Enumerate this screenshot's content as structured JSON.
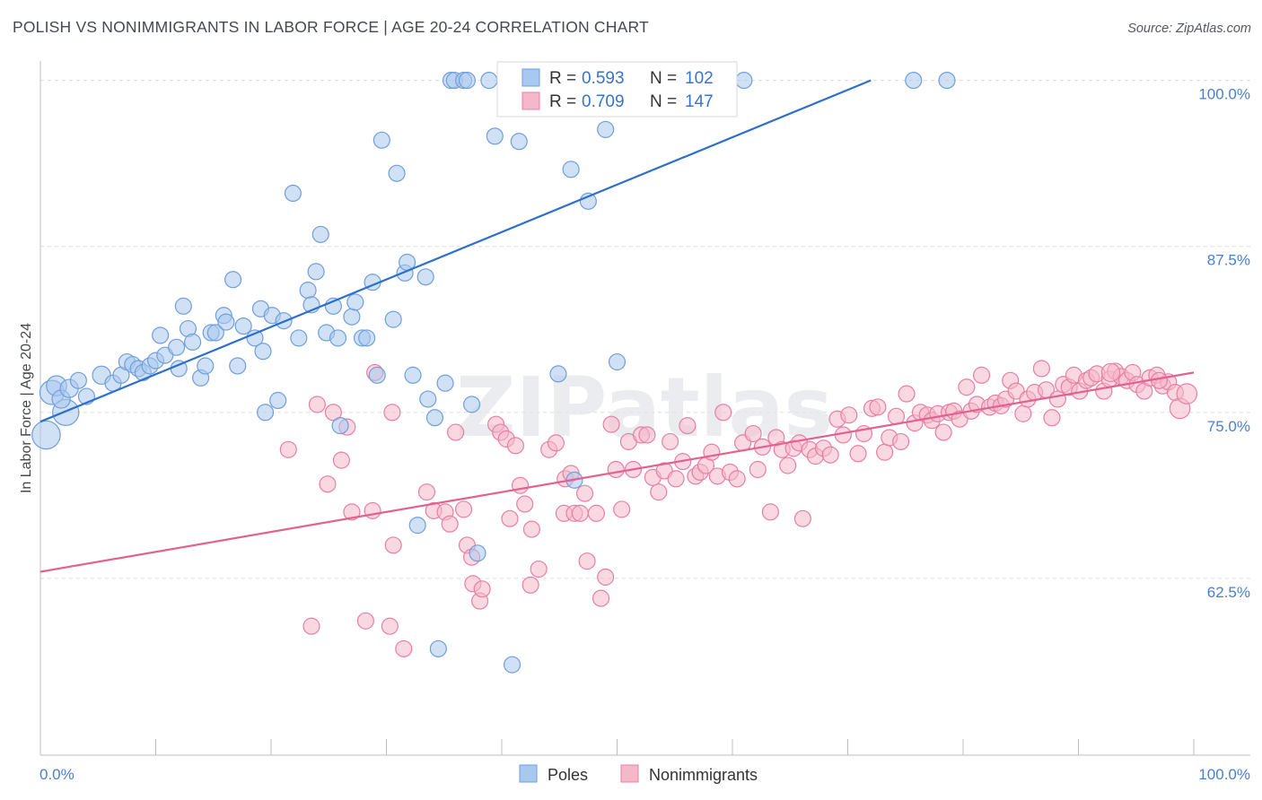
{
  "title": "POLISH VS NONIMMIGRANTS IN LABOR FORCE | AGE 20-24 CORRELATION CHART",
  "source": "Source: ZipAtlas.com",
  "watermark": "ZIPatlas",
  "colors": {
    "poles_fill": "#a9c8ef",
    "poles_stroke": "#6f9fdc",
    "poles_line": "#2e6fcb",
    "nonimm_fill": "#f5b8cb",
    "nonimm_stroke": "#e87fa3",
    "nonimm_line": "#e2628f",
    "tick_label": "#4a7fcf",
    "grid": "#dcdcdc"
  },
  "legend": {
    "rows": [
      {
        "r_label": "R =",
        "r_value": "0.593",
        "n_label": "N =",
        "n_value": "102"
      },
      {
        "r_label": "R =",
        "r_value": "0.709",
        "n_label": "N =",
        "n_value": "147"
      }
    ]
  },
  "chart_data": {
    "type": "scatter",
    "ylabel": "In Labor Force | Age 20-24",
    "xlim": [
      0,
      100
    ],
    "ylim": [
      50,
      102
    ],
    "x_tick_labels": [
      "0.0%",
      "100.0%"
    ],
    "y_ticks": [
      100,
      87.5,
      75,
      62.5
    ],
    "y_tick_labels": [
      "100.0%",
      "87.5%",
      "75.0%",
      "62.5%"
    ],
    "grid": true,
    "legend_position": "top-center",
    "series": [
      {
        "name": "Poles",
        "trend": {
          "x": [
            0,
            72
          ],
          "y": [
            74.3,
            100
          ]
        },
        "points": [
          [
            0.5,
            73.3,
            14
          ],
          [
            1.0,
            76.5,
            12
          ],
          [
            1.4,
            77.0,
            10
          ],
          [
            2.2,
            75.0,
            13
          ],
          [
            1.8,
            76.0,
            9
          ],
          [
            2.5,
            76.8,
            9
          ],
          [
            3.3,
            77.4,
            8
          ],
          [
            4.0,
            76.2,
            8
          ],
          [
            5.3,
            77.8,
            9
          ],
          [
            6.3,
            77.2,
            8
          ],
          [
            7.0,
            77.8,
            8
          ],
          [
            7.5,
            78.8,
            8
          ],
          [
            8.0,
            78.6,
            8
          ],
          [
            8.5,
            78.3,
            8
          ],
          [
            8.9,
            78.0,
            8
          ],
          [
            9.5,
            78.5,
            8
          ],
          [
            10.0,
            78.9,
            8
          ],
          [
            10.4,
            80.8,
            8
          ],
          [
            10.8,
            79.3,
            8
          ],
          [
            11.8,
            79.9,
            8
          ],
          [
            12.0,
            78.3,
            8
          ],
          [
            12.4,
            83.0,
            8
          ],
          [
            12.8,
            81.3,
            8
          ],
          [
            13.2,
            80.3,
            8
          ],
          [
            13.9,
            77.6,
            8
          ],
          [
            14.3,
            78.5,
            8
          ],
          [
            14.8,
            81.0,
            8
          ],
          [
            15.2,
            81.0,
            8
          ],
          [
            15.9,
            82.3,
            8
          ],
          [
            16.1,
            81.8,
            8
          ],
          [
            16.7,
            85.0,
            8
          ],
          [
            17.1,
            78.5,
            8
          ],
          [
            17.6,
            81.5,
            8
          ],
          [
            18.6,
            80.6,
            8
          ],
          [
            19.1,
            82.8,
            8
          ],
          [
            19.3,
            79.6,
            8
          ],
          [
            19.5,
            75.0,
            8
          ],
          [
            20.1,
            82.3,
            8
          ],
          [
            20.6,
            75.9,
            8
          ],
          [
            21.1,
            81.9,
            8
          ],
          [
            21.9,
            91.5,
            8
          ],
          [
            22.4,
            80.6,
            8
          ],
          [
            23.2,
            84.2,
            8
          ],
          [
            23.5,
            83.1,
            8
          ],
          [
            23.9,
            85.6,
            8
          ],
          [
            24.3,
            88.4,
            8
          ],
          [
            24.8,
            81.0,
            8
          ],
          [
            25.4,
            83.0,
            8
          ],
          [
            25.8,
            80.6,
            8
          ],
          [
            26.0,
            74.0,
            8
          ],
          [
            27.0,
            82.2,
            8
          ],
          [
            27.3,
            83.3,
            8
          ],
          [
            27.9,
            80.6,
            8
          ],
          [
            28.3,
            80.6,
            8
          ],
          [
            28.8,
            84.8,
            8
          ],
          [
            29.2,
            77.8,
            8
          ],
          [
            29.6,
            95.5,
            8
          ],
          [
            30.6,
            82.0,
            8
          ],
          [
            30.9,
            93.0,
            8
          ],
          [
            31.6,
            85.5,
            8
          ],
          [
            31.8,
            86.3,
            8
          ],
          [
            32.3,
            77.8,
            8
          ],
          [
            32.7,
            66.5,
            8
          ],
          [
            33.4,
            85.2,
            8
          ],
          [
            33.6,
            76.0,
            8
          ],
          [
            34.2,
            74.6,
            8
          ],
          [
            34.5,
            57.2,
            8
          ],
          [
            35.1,
            77.2,
            8
          ],
          [
            35.6,
            100.0,
            8
          ],
          [
            35.9,
            100.0,
            8
          ],
          [
            36.7,
            100.0,
            8
          ],
          [
            37.0,
            100.0,
            8
          ],
          [
            37.4,
            75.6,
            8
          ],
          [
            37.9,
            64.4,
            8
          ],
          [
            38.9,
            100.0,
            8
          ],
          [
            39.4,
            95.8,
            8
          ],
          [
            40.9,
            56.0,
            8
          ],
          [
            41.4,
            100.0,
            8
          ],
          [
            41.5,
            95.4,
            8
          ],
          [
            41.9,
            100.0,
            8
          ],
          [
            44.4,
            100.0,
            8
          ],
          [
            44.9,
            77.9,
            8
          ],
          [
            46.0,
            93.3,
            8
          ],
          [
            46.3,
            69.9,
            8
          ],
          [
            47.5,
            90.9,
            8
          ],
          [
            49.0,
            96.3,
            8
          ],
          [
            50.0,
            78.8,
            8
          ],
          [
            51.3,
            100.0,
            8
          ],
          [
            51.9,
            100.0,
            8
          ],
          [
            53.6,
            100.0,
            8
          ],
          [
            61.0,
            100.0,
            8
          ],
          [
            75.7,
            100.0,
            8
          ],
          [
            78.6,
            100.0,
            8
          ]
        ]
      },
      {
        "name": "Nonimmigrants",
        "trend": {
          "x": [
            0,
            100
          ],
          "y": [
            63.0,
            78.0
          ]
        },
        "points": [
          [
            21.5,
            72.2,
            8
          ],
          [
            23.5,
            58.9,
            8
          ],
          [
            24.0,
            75.6,
            8
          ],
          [
            24.9,
            69.6,
            8
          ],
          [
            25.4,
            75.0,
            8
          ],
          [
            26.1,
            71.4,
            8
          ],
          [
            26.6,
            73.9,
            8
          ],
          [
            27.0,
            67.5,
            8
          ],
          [
            28.2,
            59.3,
            8
          ],
          [
            28.8,
            67.6,
            8
          ],
          [
            29.0,
            78.0,
            8
          ],
          [
            30.3,
            58.9,
            8
          ],
          [
            30.5,
            75.0,
            8
          ],
          [
            30.6,
            65.0,
            8
          ],
          [
            31.5,
            57.2,
            8
          ],
          [
            33.5,
            69.0,
            8
          ],
          [
            34.1,
            67.6,
            8
          ],
          [
            35.1,
            67.5,
            8
          ],
          [
            35.5,
            66.6,
            8
          ],
          [
            36.0,
            73.5,
            8
          ],
          [
            36.7,
            67.7,
            8
          ],
          [
            37.0,
            65.0,
            8
          ],
          [
            37.4,
            64.1,
            8
          ],
          [
            37.5,
            62.1,
            8
          ],
          [
            38.1,
            60.8,
            8
          ],
          [
            38.3,
            61.7,
            8
          ],
          [
            39.5,
            74.1,
            8
          ],
          [
            39.9,
            73.5,
            8
          ],
          [
            40.4,
            73.0,
            8
          ],
          [
            40.7,
            67.0,
            8
          ],
          [
            41.2,
            72.5,
            8
          ],
          [
            41.6,
            69.5,
            8
          ],
          [
            42.0,
            68.1,
            8
          ],
          [
            42.5,
            62.0,
            8
          ],
          [
            42.6,
            66.2,
            8
          ],
          [
            43.2,
            63.2,
            8
          ],
          [
            44.1,
            72.2,
            8
          ],
          [
            44.7,
            72.7,
            8
          ],
          [
            45.4,
            67.4,
            8
          ],
          [
            45.5,
            70.0,
            8
          ],
          [
            46.0,
            70.4,
            8
          ],
          [
            46.3,
            67.4,
            8
          ],
          [
            46.8,
            67.4,
            8
          ],
          [
            47.2,
            68.9,
            8
          ],
          [
            47.4,
            63.8,
            8
          ],
          [
            48.2,
            67.4,
            8
          ],
          [
            48.6,
            61.0,
            8
          ],
          [
            49.0,
            62.6,
            8
          ],
          [
            49.5,
            74.1,
            8
          ],
          [
            49.9,
            70.7,
            8
          ],
          [
            50.4,
            67.7,
            8
          ],
          [
            51.0,
            72.8,
            8
          ],
          [
            51.4,
            70.7,
            8
          ],
          [
            52.1,
            73.3,
            8
          ],
          [
            52.6,
            73.3,
            8
          ],
          [
            53.1,
            70.1,
            8
          ],
          [
            53.6,
            69.0,
            8
          ],
          [
            54.1,
            70.6,
            8
          ],
          [
            54.6,
            72.8,
            8
          ],
          [
            55.1,
            70.0,
            8
          ],
          [
            55.7,
            71.3,
            8
          ],
          [
            56.1,
            74.0,
            8
          ],
          [
            56.8,
            70.2,
            8
          ],
          [
            57.2,
            70.5,
            8
          ],
          [
            57.7,
            71.0,
            8
          ],
          [
            58.2,
            72.0,
            8
          ],
          [
            58.7,
            70.2,
            8
          ],
          [
            59.2,
            75.0,
            8
          ],
          [
            59.8,
            70.5,
            8
          ],
          [
            60.4,
            70.0,
            8
          ],
          [
            60.9,
            72.7,
            8
          ],
          [
            61.8,
            73.4,
            8
          ],
          [
            62.2,
            70.7,
            8
          ],
          [
            62.6,
            72.4,
            8
          ],
          [
            63.3,
            67.5,
            8
          ],
          [
            63.8,
            73.1,
            8
          ],
          [
            64.3,
            72.2,
            8
          ],
          [
            64.8,
            71.0,
            8
          ],
          [
            65.3,
            72.3,
            8
          ],
          [
            65.8,
            72.7,
            8
          ],
          [
            66.1,
            67.0,
            8
          ],
          [
            66.7,
            72.2,
            8
          ],
          [
            67.2,
            71.7,
            8
          ],
          [
            67.9,
            72.3,
            8
          ],
          [
            68.5,
            71.8,
            8
          ],
          [
            69.1,
            74.5,
            8
          ],
          [
            69.6,
            73.3,
            8
          ],
          [
            70.1,
            74.8,
            8
          ],
          [
            70.9,
            71.9,
            8
          ],
          [
            71.4,
            73.4,
            8
          ],
          [
            72.1,
            75.3,
            8
          ],
          [
            72.6,
            75.4,
            8
          ],
          [
            73.2,
            72.0,
            8
          ],
          [
            73.6,
            73.1,
            8
          ],
          [
            74.2,
            74.7,
            8
          ],
          [
            74.6,
            72.8,
            8
          ],
          [
            75.1,
            76.4,
            8
          ],
          [
            75.8,
            74.2,
            8
          ],
          [
            76.3,
            75.0,
            8
          ],
          [
            76.9,
            74.8,
            8
          ],
          [
            77.3,
            74.4,
            8
          ],
          [
            77.8,
            74.9,
            8
          ],
          [
            78.3,
            73.5,
            8
          ],
          [
            78.8,
            75.0,
            8
          ],
          [
            79.2,
            75.1,
            8
          ],
          [
            79.7,
            74.5,
            8
          ],
          [
            80.3,
            76.9,
            8
          ],
          [
            80.7,
            75.1,
            8
          ],
          [
            81.2,
            75.6,
            8
          ],
          [
            81.6,
            77.8,
            8
          ],
          [
            82.3,
            75.4,
            8
          ],
          [
            82.8,
            75.7,
            8
          ],
          [
            83.3,
            75.5,
            8
          ],
          [
            83.7,
            76.0,
            8
          ],
          [
            84.1,
            77.4,
            8
          ],
          [
            84.6,
            76.6,
            8
          ],
          [
            85.2,
            74.9,
            8
          ],
          [
            85.6,
            76.0,
            8
          ],
          [
            86.2,
            76.5,
            8
          ],
          [
            86.8,
            78.3,
            8
          ],
          [
            87.2,
            76.7,
            8
          ],
          [
            87.7,
            74.6,
            8
          ],
          [
            88.2,
            76.0,
            8
          ],
          [
            88.7,
            77.1,
            8
          ],
          [
            89.2,
            76.9,
            8
          ],
          [
            89.6,
            77.8,
            8
          ],
          [
            90.1,
            76.6,
            8
          ],
          [
            90.7,
            77.4,
            8
          ],
          [
            91.1,
            77.6,
            8
          ],
          [
            91.6,
            77.9,
            8
          ],
          [
            92.2,
            76.6,
            8
          ],
          [
            92.7,
            77.5,
            8
          ],
          [
            93.2,
            78.1,
            8
          ],
          [
            93.7,
            77.7,
            8
          ],
          [
            94.2,
            77.4,
            8
          ],
          [
            94.7,
            78.0,
            8
          ],
          [
            95.1,
            77.1,
            8
          ],
          [
            95.7,
            76.6,
            8
          ],
          [
            96.2,
            77.6,
            8
          ],
          [
            96.8,
            77.8,
            8
          ],
          [
            97.3,
            77.0,
            8
          ],
          [
            97.8,
            77.3,
            8
          ],
          [
            98.4,
            76.5,
            8
          ],
          [
            98.8,
            75.3,
            10
          ],
          [
            99.4,
            76.4,
            10
          ],
          [
            92.8,
            78.0,
            9
          ],
          [
            97.0,
            77.4,
            8
          ]
        ]
      }
    ]
  }
}
